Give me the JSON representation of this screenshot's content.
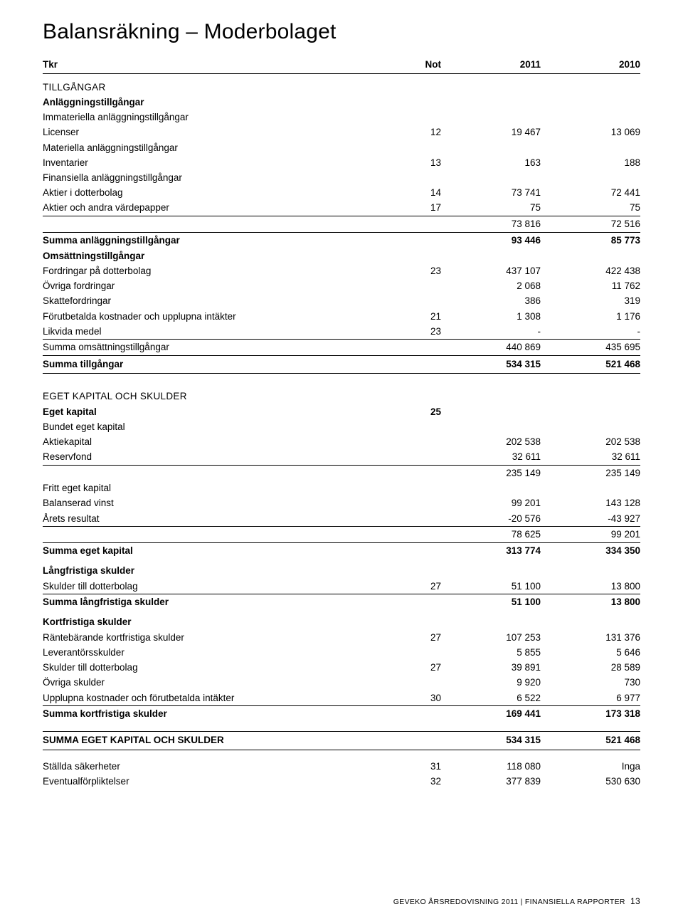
{
  "title": "Balansräkning – Moderbolaget",
  "header": {
    "c0": "Tkr",
    "c1": "Not",
    "c2": "2011",
    "c3": "2010"
  },
  "sections": {
    "assets_caps": "TILLGÅNGAR",
    "fixed": "Anläggningstillgångar",
    "intangible": "Immateriella anläggningstillgångar",
    "tangible": "Materiella anläggningstillgångar",
    "financial": "Finansiella anläggningstillgångar",
    "current": "Omsättningstillgångar",
    "equity_caps": "EGET KAPITAL OCH SKULDER",
    "equity": "Eget kapital",
    "restricted": "Bundet eget kapital",
    "free": "Fritt eget kapital",
    "longterm": "Långfristiga skulder",
    "shortterm": "Kortfristiga skulder"
  },
  "rows": {
    "licenser": {
      "label": "Licenser",
      "not": "12",
      "a": "19 467",
      "b": "13 069"
    },
    "inventarier": {
      "label": "Inventarier",
      "not": "13",
      "a": "163",
      "b": "188"
    },
    "aktier_dotter": {
      "label": "Aktier i dotterbolag",
      "not": "14",
      "a": "73 741",
      "b": "72 441"
    },
    "aktier_andra": {
      "label": "Aktier och andra värdepapper",
      "not": "17",
      "a": "75",
      "b": "75"
    },
    "fin_subtotal": {
      "label": "",
      "not": "",
      "a": "73 816",
      "b": "72 516"
    },
    "summa_anl": {
      "label": "Summa anläggningstillgångar",
      "not": "",
      "a": "93 446",
      "b": "85 773"
    },
    "fordr_dotter": {
      "label": "Fordringar på dotterbolag",
      "not": "23",
      "a": "437 107",
      "b": "422 438"
    },
    "ovriga_fordr": {
      "label": "Övriga fordringar",
      "not": "",
      "a": "2 068",
      "b": "11 762"
    },
    "skattefordr": {
      "label": "Skattefordringar",
      "not": "",
      "a": "386",
      "b": "319"
    },
    "forutbet": {
      "label": "Förutbetalda kostnader och upplupna intäkter",
      "not": "21",
      "a": "1 308",
      "b": "1 176"
    },
    "likvida": {
      "label": "Likvida medel",
      "not": "23",
      "a": "-",
      "b": "-"
    },
    "summa_oms": {
      "label": "Summa omsättningstillgångar",
      "not": "",
      "a": "440 869",
      "b": "435 695"
    },
    "summa_tillg": {
      "label": "Summa tillgångar",
      "not": "",
      "a": "534 315",
      "b": "521 468"
    },
    "eget_kapital": {
      "label": "Eget kapital",
      "not": "25",
      "a": "",
      "b": ""
    },
    "aktiekapital": {
      "label": "Aktiekapital",
      "not": "",
      "a": "202 538",
      "b": "202 538"
    },
    "reservfond": {
      "label": "Reservfond",
      "not": "",
      "a": "32 611",
      "b": "32 611"
    },
    "bund_subtotal": {
      "label": "",
      "not": "",
      "a": "235 149",
      "b": "235 149"
    },
    "balanserad": {
      "label": "Balanserad vinst",
      "not": "",
      "a": "99 201",
      "b": "143 128"
    },
    "arets_res": {
      "label": "Årets resultat",
      "not": "",
      "a": "-20 576",
      "b": "-43 927"
    },
    "fritt_subtotal": {
      "label": "",
      "not": "",
      "a": "78 625",
      "b": "99 201"
    },
    "summa_ek": {
      "label": "Summa eget kapital",
      "not": "",
      "a": "313 774",
      "b": "334 350"
    },
    "sk_dotter_l": {
      "label": "Skulder till dotterbolag",
      "not": "27",
      "a": "51 100",
      "b": "13 800"
    },
    "summa_lang": {
      "label": "Summa långfristiga skulder",
      "not": "",
      "a": "51 100",
      "b": "13 800"
    },
    "ranteb": {
      "label": "Räntebärande kortfristiga skulder",
      "not": "27",
      "a": "107 253",
      "b": "131 376"
    },
    "lev": {
      "label": "Leverantörsskulder",
      "not": "",
      "a": "5 855",
      "b": "5 646"
    },
    "sk_dotter_k": {
      "label": "Skulder till dotterbolag",
      "not": "27",
      "a": "39 891",
      "b": "28 589"
    },
    "ovriga_sk": {
      "label": "Övriga skulder",
      "not": "",
      "a": "9 920",
      "b": "730"
    },
    "upplupna": {
      "label": "Upplupna kostnader och förutbetalda intäkter",
      "not": "30",
      "a": "6 522",
      "b": "6 977"
    },
    "summa_kort": {
      "label": "Summa kortfristiga skulder",
      "not": "",
      "a": "169 441",
      "b": "173 318"
    },
    "summa_eks": {
      "label": "SUMMA EGET KAPITAL OCH SKULDER",
      "not": "",
      "a": "534 315",
      "b": "521 468"
    },
    "stallda": {
      "label": "Ställda säkerheter",
      "not": "31",
      "a": "118 080",
      "b": "Inga"
    },
    "eventual": {
      "label": "Eventualförpliktelser",
      "not": "32",
      "a": "377 839",
      "b": "530 630"
    }
  },
  "footer": {
    "text": "GEVEKO ÅRSREDOVISNING 2011 | FINANSIELLA RAPPORTER",
    "page": "13"
  }
}
